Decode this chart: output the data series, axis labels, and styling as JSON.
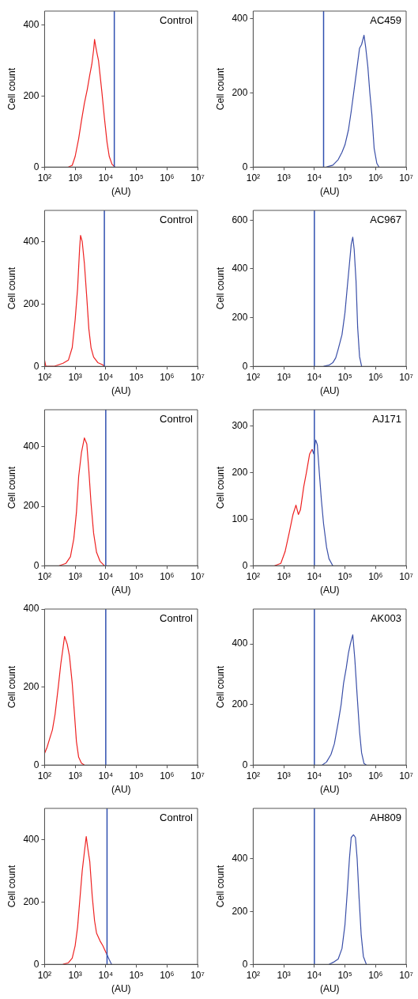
{
  "chart_data": [
    {
      "type": "line",
      "xlabel": "(AU)",
      "ylabel": "Cell count",
      "annotations": [
        "Control"
      ],
      "xlim": [
        100,
        10000000
      ],
      "xticks": [
        {
          "value": 100,
          "label": "10²"
        },
        {
          "value": 1000,
          "label": "10³"
        },
        {
          "value": 10000,
          "label": "10⁴"
        },
        {
          "value": 100000,
          "label": "10⁵"
        },
        {
          "value": 1000000,
          "label": "10⁶"
        },
        {
          "value": 10000000,
          "label": "10⁷"
        }
      ],
      "ylim": [
        0,
        440
      ],
      "yticks": [
        0,
        200,
        400
      ],
      "log": "x",
      "grid": false,
      "ref_lines": [
        {
          "axis": "x",
          "value": 19000,
          "color": "#3050b0"
        }
      ],
      "series": [
        {
          "color": "#ee2222",
          "x": [
            600,
            800,
            1000,
            1300,
            1600,
            2000,
            2500,
            3000,
            3500,
            4000,
            4300,
            4700,
            5200,
            5800,
            6500,
            7500,
            9000,
            11000,
            13000,
            16000,
            20000
          ],
          "values": [
            0,
            5,
            30,
            80,
            130,
            180,
            220,
            260,
            290,
            330,
            360,
            340,
            320,
            300,
            260,
            210,
            140,
            70,
            30,
            8,
            0
          ]
        }
      ]
    },
    {
      "type": "line",
      "xlabel": "(AU)",
      "ylabel": "Cell count",
      "annotations": [
        "AC459"
      ],
      "xlim": [
        100,
        10000000
      ],
      "xticks": [
        {
          "value": 100,
          "label": "10²"
        },
        {
          "value": 1000,
          "label": "10³"
        },
        {
          "value": 10000,
          "label": "10⁴"
        },
        {
          "value": 100000,
          "label": "10⁵"
        },
        {
          "value": 1000000,
          "label": "10⁶"
        },
        {
          "value": 10000000,
          "label": "10⁷"
        }
      ],
      "ylim": [
        0,
        420
      ],
      "yticks": [
        0,
        200,
        400
      ],
      "log": "x",
      "grid": false,
      "ref_lines": [
        {
          "axis": "x",
          "value": 20000,
          "color": "#3050b0"
        }
      ],
      "series": [
        {
          "color": "#3a4fa8",
          "x": [
            25000,
            40000,
            60000,
            80000,
            100000,
            130000,
            160000,
            200000,
            250000,
            300000,
            350000,
            420000,
            480000,
            560000,
            650000,
            760000,
            900000,
            1100000,
            1300000
          ],
          "values": [
            0,
            5,
            20,
            40,
            60,
            100,
            150,
            210,
            270,
            320,
            330,
            355,
            320,
            270,
            200,
            140,
            50,
            10,
            0
          ]
        }
      ]
    },
    {
      "type": "line",
      "xlabel": "(AU)",
      "ylabel": "Cell count",
      "annotations": [
        "Control"
      ],
      "xlim": [
        100,
        10000000
      ],
      "xticks": [
        {
          "value": 100,
          "label": "10²"
        },
        {
          "value": 1000,
          "label": "10³"
        },
        {
          "value": 10000,
          "label": "10⁴"
        },
        {
          "value": 100000,
          "label": "10⁵"
        },
        {
          "value": 1000000,
          "label": "10⁶"
        },
        {
          "value": 10000000,
          "label": "10⁷"
        }
      ],
      "ylim": [
        0,
        500
      ],
      "yticks": [
        0,
        200,
        400
      ],
      "log": "x",
      "grid": false,
      "ref_lines": [
        {
          "axis": "x",
          "value": 9000,
          "color": "#3050b0"
        }
      ],
      "series": [
        {
          "color": "#ee2222",
          "x": [
            100,
            110,
            200,
            400,
            600,
            800,
            1000,
            1200,
            1400,
            1500,
            1700,
            2000,
            2400,
            2800,
            3300,
            4000,
            5500,
            8000,
            9000
          ],
          "values": [
            20,
            0,
            0,
            10,
            20,
            60,
            150,
            250,
            380,
            420,
            400,
            330,
            220,
            120,
            60,
            30,
            12,
            5,
            0
          ]
        }
      ]
    },
    {
      "type": "line",
      "xlabel": "(AU)",
      "ylabel": "Cell count",
      "annotations": [
        "AC967"
      ],
      "xlim": [
        100,
        10000000
      ],
      "xticks": [
        {
          "value": 100,
          "label": "10²"
        },
        {
          "value": 1000,
          "label": "10³"
        },
        {
          "value": 10000,
          "label": "10⁴"
        },
        {
          "value": 100000,
          "label": "10⁵"
        },
        {
          "value": 1000000,
          "label": "10⁶"
        },
        {
          "value": 10000000,
          "label": "10⁷"
        }
      ],
      "ylim": [
        0,
        640
      ],
      "yticks": [
        0,
        200,
        400,
        600
      ],
      "log": "x",
      "grid": false,
      "ref_lines": [
        {
          "axis": "x",
          "value": 10000,
          "color": "#3050b0"
        }
      ],
      "series": [
        {
          "color": "#3a4fa8",
          "x": [
            20000,
            30000,
            40000,
            50000,
            60000,
            80000,
            100000,
            120000,
            140000,
            160000,
            180000,
            200000,
            230000,
            260000,
            300000,
            350000
          ],
          "values": [
            0,
            5,
            15,
            35,
            70,
            130,
            220,
            330,
            420,
            500,
            530,
            480,
            350,
            160,
            40,
            0
          ]
        }
      ]
    },
    {
      "type": "line",
      "xlabel": "(AU)",
      "ylabel": "Cell count",
      "annotations": [
        "Control"
      ],
      "xlim": [
        100,
        10000000
      ],
      "xticks": [
        {
          "value": 100,
          "label": "10²"
        },
        {
          "value": 1000,
          "label": "10³"
        },
        {
          "value": 10000,
          "label": "10⁴"
        },
        {
          "value": 100000,
          "label": "10⁵"
        },
        {
          "value": 1000000,
          "label": "10⁶"
        },
        {
          "value": 10000000,
          "label": "10⁷"
        }
      ],
      "ylim": [
        0,
        525
      ],
      "yticks": [
        0,
        200,
        400
      ],
      "log": "x",
      "grid": false,
      "ref_lines": [
        {
          "axis": "x",
          "value": 10000,
          "color": "#3050b0"
        }
      ],
      "series": [
        {
          "color": "#ee2222",
          "x": [
            300,
            500,
            700,
            900,
            1100,
            1300,
            1600,
            2000,
            2400,
            2800,
            3300,
            4000,
            5000,
            6500,
            9000
          ],
          "values": [
            0,
            8,
            30,
            90,
            180,
            300,
            380,
            430,
            410,
            320,
            210,
            110,
            45,
            15,
            0
          ]
        }
      ]
    },
    {
      "type": "line",
      "xlabel": "(AU)",
      "ylabel": "Cell count",
      "annotations": [
        "AJ171"
      ],
      "xlim": [
        100,
        10000000
      ],
      "xticks": [
        {
          "value": 100,
          "label": "10²"
        },
        {
          "value": 1000,
          "label": "10³"
        },
        {
          "value": 10000,
          "label": "10⁴"
        },
        {
          "value": 100000,
          "label": "10⁵"
        },
        {
          "value": 1000000,
          "label": "10⁶"
        },
        {
          "value": 10000000,
          "label": "10⁷"
        }
      ],
      "ylim": [
        0,
        335
      ],
      "yticks": [
        0,
        100,
        200,
        300
      ],
      "log": "x",
      "grid": false,
      "ref_lines": [
        {
          "axis": "x",
          "value": 10000,
          "color": "#3050b0"
        }
      ],
      "series": [
        {
          "color": "#ee2222",
          "x": [
            500,
            800,
            1100,
            1500,
            2000,
            2500,
            3000,
            3500,
            4500,
            5500,
            7000,
            8500
          ],
          "values": [
            0,
            5,
            30,
            70,
            110,
            130,
            110,
            120,
            170,
            200,
            240,
            250
          ]
        },
        {
          "color": "#3a4fa8",
          "x": [
            8500,
            9500,
            11000,
            12500,
            14500,
            17000,
            20000,
            25000,
            30000,
            40000
          ],
          "values": [
            250,
            240,
            270,
            260,
            200,
            140,
            90,
            40,
            15,
            0
          ]
        }
      ]
    },
    {
      "type": "line",
      "xlabel": "(AU)",
      "ylabel": "Cell count",
      "annotations": [
        "Control"
      ],
      "xlim": [
        100,
        10000000
      ],
      "xticks": [
        {
          "value": 100,
          "label": "10²"
        },
        {
          "value": 1000,
          "label": "10³"
        },
        {
          "value": 10000,
          "label": "10⁴"
        },
        {
          "value": 100000,
          "label": "10⁵"
        },
        {
          "value": 1000000,
          "label": "10⁶"
        },
        {
          "value": 10000000,
          "label": "10⁷"
        }
      ],
      "ylim": [
        0,
        400
      ],
      "yticks": [
        0,
        200,
        400
      ],
      "log": "x",
      "grid": false,
      "ref_lines": [
        {
          "axis": "x",
          "value": 10000,
          "color": "#3050b0"
        }
      ],
      "series": [
        {
          "color": "#ee2222",
          "x": [
            100,
            120,
            150,
            180,
            220,
            280,
            340,
            400,
            450,
            550,
            650,
            800,
            950,
            1100,
            1300,
            1600,
            2000
          ],
          "values": [
            30,
            45,
            70,
            90,
            130,
            200,
            260,
            300,
            330,
            310,
            280,
            210,
            130,
            60,
            20,
            5,
            0
          ]
        }
      ]
    },
    {
      "type": "line",
      "xlabel": "(AU)",
      "ylabel": "Cell count",
      "annotations": [
        "AK003"
      ],
      "xlim": [
        100,
        10000000
      ],
      "xticks": [
        {
          "value": 100,
          "label": "10²"
        },
        {
          "value": 1000,
          "label": "10³"
        },
        {
          "value": 10000,
          "label": "10⁴"
        },
        {
          "value": 100000,
          "label": "10⁵"
        },
        {
          "value": 1000000,
          "label": "10⁶"
        },
        {
          "value": 10000000,
          "label": "10⁷"
        }
      ],
      "ylim": [
        0,
        515
      ],
      "yticks": [
        0,
        200,
        400
      ],
      "log": "x",
      "grid": false,
      "ref_lines": [
        {
          "axis": "x",
          "value": 10000,
          "color": "#3050b0"
        }
      ],
      "series": [
        {
          "color": "#3a4fa8",
          "x": [
            18000,
            25000,
            35000,
            45000,
            60000,
            75000,
            90000,
            110000,
            130000,
            150000,
            180000,
            210000,
            250000,
            300000,
            350000,
            420000,
            500000
          ],
          "values": [
            0,
            10,
            35,
            70,
            140,
            200,
            270,
            320,
            370,
            400,
            430,
            350,
            230,
            110,
            40,
            5,
            0
          ]
        }
      ]
    },
    {
      "type": "line",
      "xlabel": "(AU)",
      "ylabel": "Cell count",
      "annotations": [
        "Control"
      ],
      "xlim": [
        100,
        10000000
      ],
      "xticks": [
        {
          "value": 100,
          "label": "10²"
        },
        {
          "value": 1000,
          "label": "10³"
        },
        {
          "value": 10000,
          "label": "10⁴"
        },
        {
          "value": 100000,
          "label": "10⁵"
        },
        {
          "value": 1000000,
          "label": "10⁶"
        },
        {
          "value": 10000000,
          "label": "10⁷"
        }
      ],
      "ylim": [
        0,
        500
      ],
      "yticks": [
        0,
        200,
        400
      ],
      "log": "x",
      "grid": false,
      "ref_lines": [
        {
          "axis": "x",
          "value": 11000,
          "color": "#3050b0"
        }
      ],
      "series": [
        {
          "color": "#ee2222",
          "x": [
            400,
            600,
            800,
            1000,
            1200,
            1400,
            1700,
            2000,
            2300,
            2600,
            3000,
            3600,
            4300,
            5000,
            6500,
            8000,
            10500
          ],
          "values": [
            0,
            5,
            20,
            60,
            120,
            200,
            300,
            360,
            410,
            370,
            330,
            220,
            140,
            100,
            75,
            60,
            35
          ]
        },
        {
          "color": "#3a4fa8",
          "x": [
            10500,
            13000,
            15500
          ],
          "values": [
            35,
            15,
            0
          ]
        }
      ]
    },
    {
      "type": "line",
      "xlabel": "(AU)",
      "ylabel": "Cell count",
      "annotations": [
        "AH809"
      ],
      "xlim": [
        100,
        10000000
      ],
      "xticks": [
        {
          "value": 100,
          "label": "10²"
        },
        {
          "value": 1000,
          "label": "10³"
        },
        {
          "value": 10000,
          "label": "10⁴"
        },
        {
          "value": 100000,
          "label": "10⁵"
        },
        {
          "value": 1000000,
          "label": "10⁶"
        },
        {
          "value": 10000000,
          "label": "10⁷"
        }
      ],
      "ylim": [
        0,
        590
      ],
      "yticks": [
        0,
        200,
        400
      ],
      "log": "x",
      "grid": false,
      "ref_lines": [
        {
          "axis": "x",
          "value": 10000,
          "color": "#3050b0"
        }
      ],
      "series": [
        {
          "color": "#3a4fa8",
          "x": [
            30000,
            45000,
            60000,
            80000,
            100000,
            120000,
            140000,
            160000,
            190000,
            220000,
            250000,
            290000,
            340000,
            400000,
            500000
          ],
          "values": [
            0,
            10,
            20,
            60,
            150,
            280,
            400,
            480,
            490,
            480,
            400,
            250,
            110,
            30,
            0
          ]
        }
      ]
    }
  ]
}
